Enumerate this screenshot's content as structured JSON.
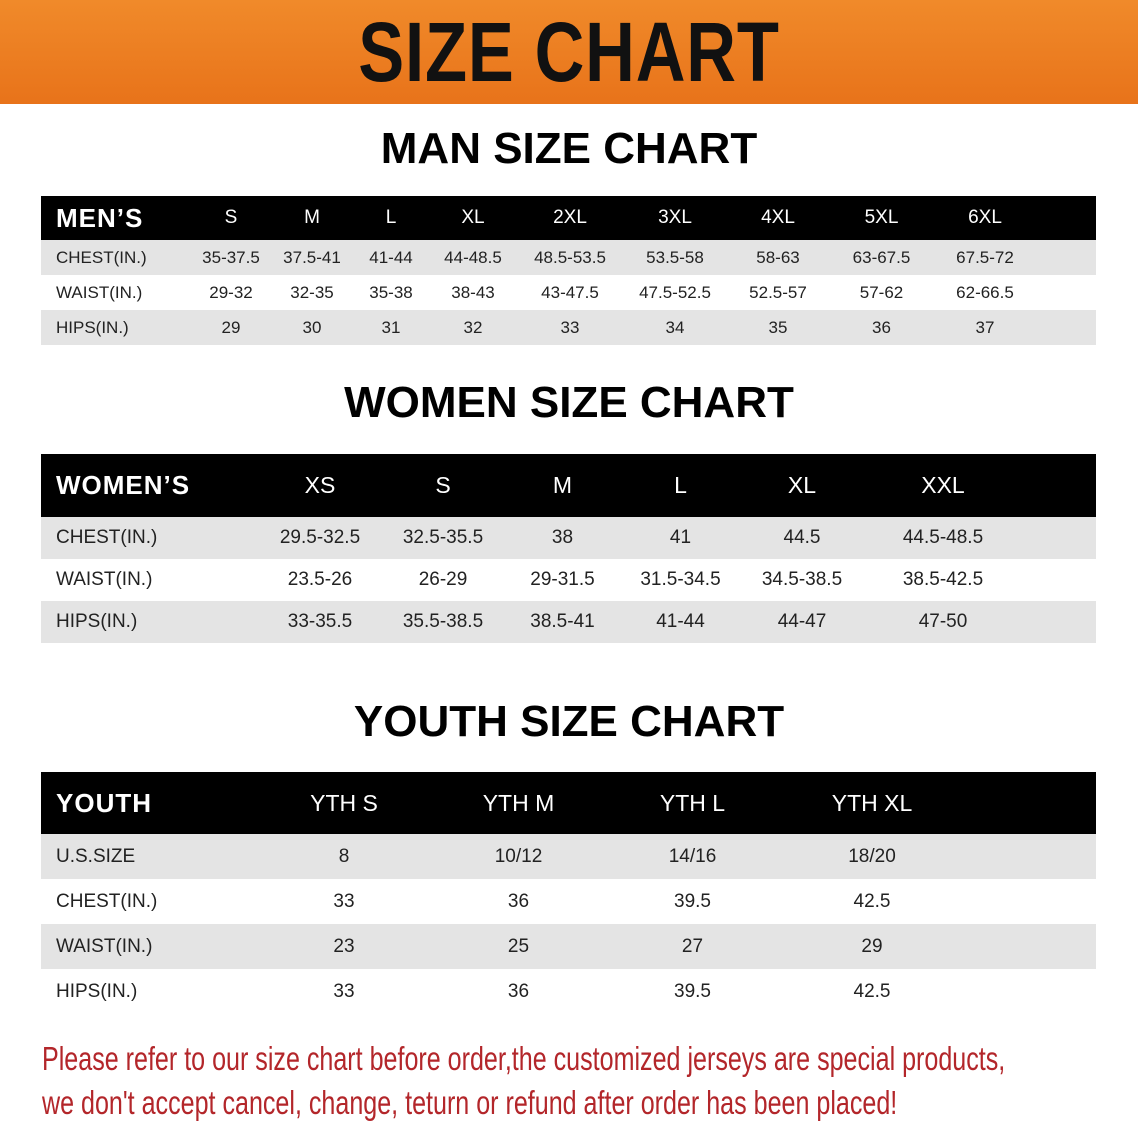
{
  "banner": "SIZE CHART",
  "men": {
    "title": "MAN SIZE CHART",
    "header": [
      "MEN’S",
      "S",
      "M",
      "L",
      "XL",
      "2XL",
      "3XL",
      "4XL",
      "5XL",
      "6XL"
    ],
    "rows": [
      [
        "CHEST(IN.)",
        "35-37.5",
        "37.5-41",
        "41-44",
        "44-48.5",
        "48.5-53.5",
        "53.5-58",
        "58-63",
        "63-67.5",
        "67.5-72"
      ],
      [
        "WAIST(IN.)",
        "29-32",
        "32-35",
        "35-38",
        "38-43",
        "43-47.5",
        "47.5-52.5",
        "52.5-57",
        "57-62",
        "62-66.5"
      ],
      [
        "HIPS(IN.)",
        "29",
        "30",
        "31",
        "32",
        "33",
        "34",
        "35",
        "36",
        "37"
      ]
    ]
  },
  "women": {
    "title": "WOMEN SIZE CHART",
    "header": [
      "WOMEN’S",
      "XS",
      "S",
      "M",
      "L",
      "XL",
      "XXL"
    ],
    "rows": [
      [
        "CHEST(IN.)",
        "29.5-32.5",
        "32.5-35.5",
        "38",
        "41",
        "44.5",
        "44.5-48.5"
      ],
      [
        "WAIST(IN.)",
        "23.5-26",
        "26-29",
        "29-31.5",
        "31.5-34.5",
        "34.5-38.5",
        "38.5-42.5"
      ],
      [
        "HIPS(IN.)",
        "33-35.5",
        "35.5-38.5",
        "38.5-41",
        "41-44",
        "44-47",
        "47-50"
      ]
    ]
  },
  "youth": {
    "title": "YOUTH SIZE CHART",
    "header": [
      "YOUTH",
      "YTH S",
      "YTH M",
      "YTH L",
      "YTH XL"
    ],
    "rows": [
      [
        "U.S.SIZE",
        "8",
        "10/12",
        "14/16",
        "18/20"
      ],
      [
        "CHEST(IN.)",
        "33",
        "36",
        "39.5",
        "42.5"
      ],
      [
        "WAIST(IN.)",
        "23",
        "25",
        "27",
        "29"
      ],
      [
        "HIPS(IN.)",
        "33",
        "36",
        "39.5",
        "42.5"
      ]
    ]
  },
  "note": [
    "Please refer to our size chart before order,the customized jerseys are special products,",
    "we don't accept cancel, change, teturn or refund after order has been placed!"
  ],
  "colors": {
    "banner": "#e8731a",
    "header_row": "#000000",
    "stripe": "#e4e4e4",
    "note": "#b3262a"
  }
}
